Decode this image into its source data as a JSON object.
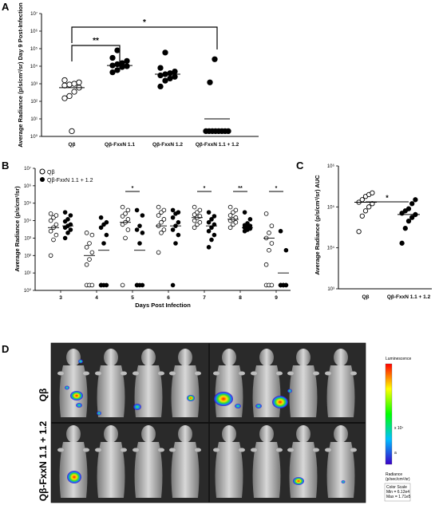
{
  "panels": {
    "A": {
      "letter": "A"
    },
    "B": {
      "letter": "B"
    },
    "C": {
      "letter": "C"
    },
    "D": {
      "letter": "D"
    }
  },
  "chart_data": [
    {
      "id": "A",
      "type": "scatter",
      "ylabel": "Average Radiance (p/s/cm²/sr) Day 9 Post-Infection",
      "yscale": "log",
      "ylim": [
        1,
        10000000
      ],
      "yticks": [
        "10⁰",
        "10¹",
        "10²",
        "10³",
        "10⁴",
        "10⁵",
        "10⁶",
        "10⁷"
      ],
      "categories": [
        "Qβ",
        "Qβ-FxxN 1.1",
        "Qβ-FxxN 1.2",
        "Qβ-FxxN 1.1 + 1.2"
      ],
      "series": [
        {
          "category": "Qβ",
          "marker": "open",
          "mean": 600,
          "values": [
            2,
            150,
            200,
            350,
            600,
            800,
            900,
            1000,
            1200,
            1600
          ]
        },
        {
          "category": "Qβ-FxxN 1.1",
          "marker": "filled",
          "mean": 11000,
          "values": [
            4500,
            6000,
            9000,
            10000,
            11000,
            13000,
            15000,
            20000,
            30000,
            80000
          ]
        },
        {
          "category": "Qβ-FxxN 1.2",
          "marker": "filled",
          "mean": 3500,
          "values": [
            700,
            1500,
            2000,
            2500,
            3000,
            3500,
            4000,
            5000,
            8000,
            60000
          ]
        },
        {
          "category": "Qβ-FxxN 1.1 + 1.2",
          "marker": "filled",
          "mean": 10,
          "values": [
            2,
            2,
            2,
            2,
            2,
            2,
            2,
            2,
            1200,
            25000
          ]
        }
      ],
      "significance": [
        {
          "label": "**",
          "from": 0,
          "to": 1
        },
        {
          "label": "*",
          "from": 0,
          "to": 3
        }
      ]
    },
    {
      "id": "B",
      "type": "scatter",
      "ylabel": "Average Radiance (p/s/cm²/sr)",
      "xlabel": "Days Post Infection",
      "yscale": "log",
      "ylim": [
        1,
        10000000
      ],
      "yticks": [
        "10⁰",
        "10¹",
        "10²",
        "10³",
        "10⁴",
        "10⁵",
        "10⁶",
        "10⁷"
      ],
      "categories": [
        "3",
        "4",
        "5",
        "6",
        "7",
        "8",
        "9"
      ],
      "legend": [
        {
          "label": "Qβ",
          "marker": "open"
        },
        {
          "label": "Qβ-FxxN 1.1 + 1.2",
          "marker": "filled"
        }
      ],
      "series": [
        {
          "name": "Qβ",
          "marker": "open",
          "means": [
            4000,
            100,
            8000,
            5000,
            15000,
            12000,
            1000
          ],
          "values": [
            [
              100,
              800,
              1500,
              2500,
              4000,
              6000,
              10000,
              15000,
              20000,
              25000
            ],
            [
              2,
              2,
              2,
              30,
              60,
              150,
              300,
              500,
              1500,
              2000
            ],
            [
              2,
              1000,
              3000,
              6000,
              8000,
              12000,
              18000,
              25000,
              40000,
              60000
            ],
            [
              150,
              2000,
              3000,
              5000,
              8000,
              12000,
              20000,
              30000,
              40000,
              60000
            ],
            [
              4000,
              6000,
              8000,
              10000,
              15000,
              18000,
              22000,
              30000,
              40000,
              60000
            ],
            [
              4000,
              6000,
              8000,
              10000,
              12000,
              15000,
              20000,
              30000,
              40000,
              60000
            ],
            [
              2,
              2,
              2,
              30,
              200,
              500,
              1000,
              2000,
              5000,
              25000
            ]
          ]
        },
        {
          "name": "Qβ-FxxN 1.1 + 1.2",
          "marker": "filled",
          "means": [
            5000,
            200,
            200,
            5000,
            5000,
            4000,
            10
          ],
          "values": [
            [
              1000,
              2000,
              3000,
              4000,
              5000,
              6000,
              9000,
              12000,
              20000,
              30000
            ],
            [
              2,
              2,
              2,
              2,
              500,
              1500,
              4000,
              6000,
              8000,
              15000
            ],
            [
              2,
              2,
              2,
              2,
              500,
              2000,
              3000,
              5000,
              20000,
              40000
            ],
            [
              2,
              500,
              1500,
              3000,
              5000,
              8000,
              15000,
              25000,
              30000,
              40000
            ],
            [
              300,
              800,
              1500,
              2500,
              4000,
              6000,
              8000,
              12000,
              18000,
              30000
            ],
            [
              2500,
              3000,
              3500,
              4000,
              4500,
              5000,
              5500,
              7000,
              12000,
              30000
            ],
            [
              2,
              2,
              2,
              2,
              2,
              2,
              2,
              2,
              200,
              2500
            ]
          ]
        }
      ],
      "significance": [
        {
          "day": "5",
          "label": "*"
        },
        {
          "day": "7",
          "label": "*"
        },
        {
          "day": "8",
          "label": "**"
        },
        {
          "day": "9",
          "label": "*"
        }
      ]
    },
    {
      "id": "C",
      "type": "scatter",
      "ylabel": "Average Radiance (p/s/cm²/sr) AUC",
      "yscale": "log",
      "ylim": [
        1000,
        1000000
      ],
      "yticks": [
        "10³",
        "10⁴",
        "10⁵",
        "10⁶"
      ],
      "categories": [
        "Qβ",
        "Qβ-FxxN 1.1 + 1.2"
      ],
      "series": [
        {
          "category": "Qβ",
          "marker": "open",
          "mean": 130000,
          "values": [
            25000,
            60000,
            80000,
            100000,
            120000,
            130000,
            150000,
            180000,
            200000,
            220000
          ]
        },
        {
          "category": "Qβ-FxxN 1.1 + 1.2",
          "marker": "filled",
          "mean": 65000,
          "values": [
            13000,
            30000,
            45000,
            55000,
            65000,
            70000,
            80000,
            90000,
            120000,
            150000
          ]
        }
      ],
      "significance": [
        {
          "label": "*",
          "from": 0,
          "to": 1
        }
      ]
    }
  ],
  "imaging": {
    "row_labels": [
      "Qβ",
      "Qβ-FxxN 1.1 + 1.2"
    ],
    "colorbar": {
      "title": "Luminescence",
      "tick_label": "x 10⁷",
      "small_label": "a",
      "units_label": "Radiance\n(p/sec/cm²/sr)",
      "scale_title": "Color Scale",
      "scale_min": "Min = 6.12e4",
      "scale_max": "Max = 1.71e5"
    }
  }
}
